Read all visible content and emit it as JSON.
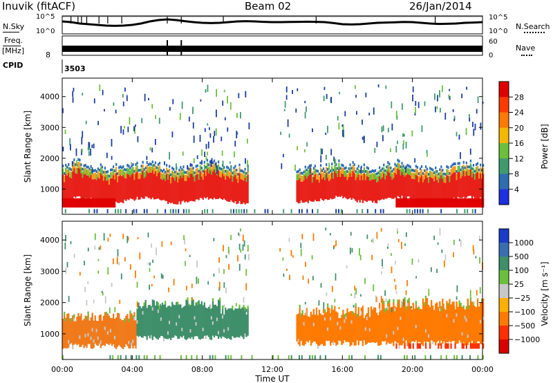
{
  "header": {
    "station": "Inuvik (fitACF)",
    "beam": "Beam 02",
    "date": "26/Jan/2014"
  },
  "chart_data": [
    {
      "type": "line",
      "name": "noise-panel",
      "left_label": "N.Sky",
      "right_label": "N.Search",
      "y_ticks": [
        "10^5",
        "10^0"
      ],
      "x_range": [
        0,
        24
      ],
      "series": [
        {
          "name": "N.Sky",
          "style": "solid",
          "x": [
            0,
            0.5,
            1,
            1.5,
            2,
            2.5,
            3,
            3.5,
            4,
            4.5,
            5,
            5.5,
            6,
            6.5,
            7,
            7.5,
            8,
            8.5,
            9,
            9.5,
            10,
            10.5,
            11,
            11.5,
            12,
            12.5,
            13,
            13.5,
            14,
            14.5,
            15,
            15.5,
            16,
            16.5,
            17,
            17.5,
            18,
            18.5,
            19,
            19.5,
            20,
            20.5,
            21,
            21.5,
            22,
            22.5,
            23,
            23.5,
            24
          ],
          "values_frac": [
            0.3,
            0.35,
            0.45,
            0.5,
            0.55,
            0.6,
            0.62,
            0.6,
            0.55,
            0.45,
            0.3,
            0.2,
            0.15,
            0.2,
            0.28,
            0.35,
            0.4,
            0.42,
            0.4,
            0.35,
            0.3,
            0.28,
            0.3,
            0.33,
            0.35,
            0.35,
            0.34,
            0.33,
            0.32,
            0.33,
            0.35,
            0.42,
            0.5,
            0.52,
            0.5,
            0.45,
            0.4,
            0.38,
            0.36,
            0.34,
            0.35,
            0.4,
            0.45,
            0.48,
            0.47,
            0.45,
            0.4,
            0.38,
            0.35
          ]
        }
      ]
    },
    {
      "type": "line",
      "name": "frequency-panel",
      "left_label_top": "Freq.",
      "left_label_bottom": "[MHz]",
      "left_tick": "8",
      "right_label": "Nave",
      "right_ticks": [
        "60",
        "0"
      ],
      "x_range": [
        0,
        24
      ],
      "spikes_x": [
        6.0,
        6.8
      ]
    },
    {
      "type": "table",
      "name": "cpid-panel",
      "label": "CPID",
      "value": "3503"
    },
    {
      "type": "heatmap",
      "name": "power-panel",
      "ylabel": "Slant Range [km]",
      "yticks": [
        1000,
        2000,
        3000,
        4000
      ],
      "ylim": [
        180,
        4600
      ],
      "xlim": [
        0,
        24
      ],
      "colorbar": {
        "label": "Power [dB]",
        "labels": [
          "28",
          "24",
          "20",
          "16",
          "12",
          "8",
          "4"
        ],
        "colors": [
          "#e00000",
          "#ff3a00",
          "#ff7a00",
          "#f5b800",
          "#6cbf3c",
          "#3f9a6e",
          "#2f6db0",
          "#1d2fe0"
        ]
      },
      "band_color": "#e8201a",
      "band_edge_color": "#f0a020",
      "scatter_color": "#1a3d9e"
    },
    {
      "type": "heatmap",
      "name": "velocity-panel",
      "ylabel": "Slant Range [km]",
      "yticks": [
        1000,
        2000,
        3000,
        4000
      ],
      "ylim": [
        180,
        4600
      ],
      "xlim": [
        0,
        24
      ],
      "xticks": [
        "00:00",
        "04:00",
        "08:00",
        "12:00",
        "16:00",
        "20:00",
        "00:00"
      ],
      "xlabel": "Time UT",
      "colorbar": {
        "label": "Velocity  [m s⁻¹]",
        "labels": [
          "1000",
          "500",
          "100",
          "25",
          "−25",
          "−100",
          "−500",
          "−1000"
        ],
        "colors": [
          "#1a3cc8",
          "#3a6eb0",
          "#3f8f6a",
          "#6cbf3c",
          "#c8c8c8",
          "#ffb000",
          "#ff7a00",
          "#ff3000",
          "#d80000"
        ]
      },
      "left_band_color": "#f07a1a",
      "mid_band_color": "#3f8f6a",
      "right_band_color": "#ff7a00"
    }
  ]
}
